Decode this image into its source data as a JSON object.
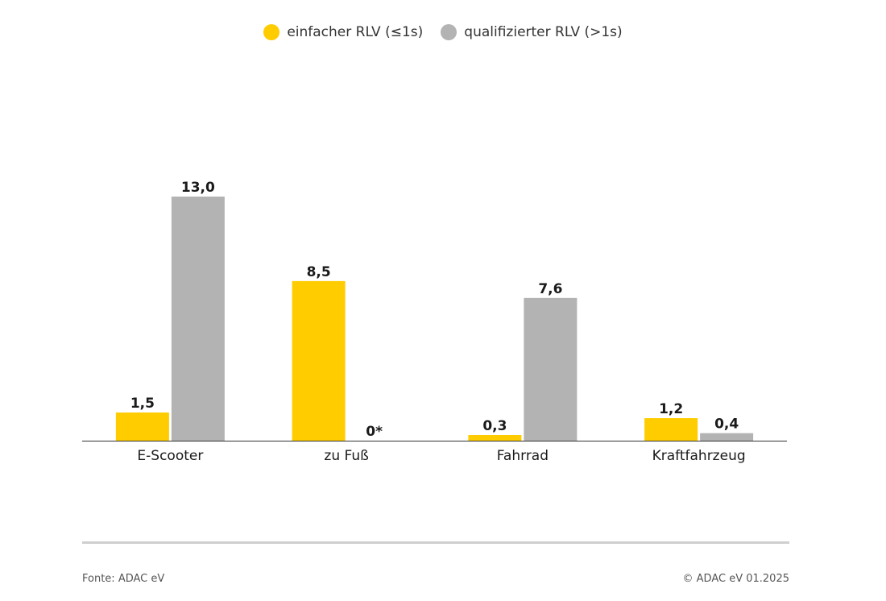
{
  "chart_data": {
    "type": "bar",
    "categories": [
      "E-Scooter",
      "zu Fuß",
      "Fahrrad",
      "Kraftfahrzeug"
    ],
    "series": [
      {
        "name": "einfacher RLV (≤1s)",
        "color": "#FFCC00",
        "values": [
          1.5,
          8.5,
          0.3,
          1.2
        ],
        "labels": [
          "1,5",
          "8,5",
          "0,3",
          "1,2"
        ]
      },
      {
        "name": "qualifizierter RLV (>1s)",
        "color": "#B3B3B3",
        "values": [
          13.0,
          0,
          7.6,
          0.4
        ],
        "labels": [
          "13,0",
          "0*",
          "7,6",
          "0,4"
        ]
      }
    ],
    "legend_position": "top-center",
    "grid": false,
    "ylim": [
      0,
      13.0
    ]
  },
  "footer": {
    "source": "Fonte: ADAC eV",
    "copyright": "© ADAC eV 01.2025"
  }
}
